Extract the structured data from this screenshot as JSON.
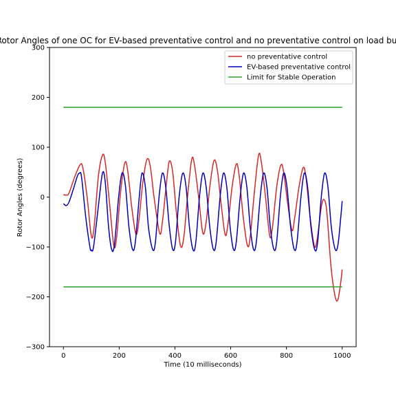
{
  "chart_data": {
    "type": "line",
    "title": "Rotor Angles of one OC for EV-based preventative control and no preventative control on load bu",
    "xlabel": "Time (10 milliseconds)",
    "ylabel": "Rotor Angles (degrees)",
    "xlim": [
      -50,
      1050
    ],
    "ylim": [
      -300,
      300
    ],
    "x_ticks": [
      0,
      200,
      400,
      600,
      800,
      1000
    ],
    "x_tick_labels": [
      "0",
      "200",
      "400",
      "600",
      "800",
      "1000"
    ],
    "y_ticks": [
      -300,
      -200,
      -100,
      0,
      100,
      200,
      300
    ],
    "y_tick_labels": [
      "−300",
      "−200",
      "−100",
      "0",
      "100",
      "200",
      "300"
    ],
    "grid": false,
    "legend_position": "top-right",
    "series": [
      {
        "name": "no preventative control",
        "color": "#d62728",
        "points": [
          [
            0,
            5
          ],
          [
            10,
            4
          ],
          [
            20,
            8
          ],
          [
            40,
            40
          ],
          [
            60,
            65
          ],
          [
            70,
            58
          ],
          [
            85,
            0
          ],
          [
            100,
            -78
          ],
          [
            110,
            -60
          ],
          [
            125,
            40
          ],
          [
            140,
            84
          ],
          [
            150,
            70
          ],
          [
            165,
            -10
          ],
          [
            180,
            -95
          ],
          [
            190,
            -85
          ],
          [
            205,
            10
          ],
          [
            220,
            68
          ],
          [
            230,
            55
          ],
          [
            245,
            -20
          ],
          [
            260,
            -74
          ],
          [
            270,
            -50
          ],
          [
            285,
            30
          ],
          [
            300,
            76
          ],
          [
            312,
            60
          ],
          [
            325,
            0
          ],
          [
            345,
            -72
          ],
          [
            355,
            -50
          ],
          [
            370,
            30
          ],
          [
            380,
            72
          ],
          [
            392,
            50
          ],
          [
            405,
            -30
          ],
          [
            420,
            -98
          ],
          [
            432,
            -80
          ],
          [
            445,
            0
          ],
          [
            460,
            75
          ],
          [
            470,
            65
          ],
          [
            485,
            0
          ],
          [
            500,
            -72
          ],
          [
            512,
            -50
          ],
          [
            525,
            20
          ],
          [
            540,
            73
          ],
          [
            552,
            55
          ],
          [
            565,
            -10
          ],
          [
            580,
            -75
          ],
          [
            590,
            -55
          ],
          [
            605,
            20
          ],
          [
            620,
            66
          ],
          [
            630,
            45
          ],
          [
            645,
            -40
          ],
          [
            660,
            -97
          ],
          [
            670,
            -80
          ],
          [
            685,
            10
          ],
          [
            700,
            84
          ],
          [
            710,
            70
          ],
          [
            725,
            0
          ],
          [
            740,
            -78
          ],
          [
            750,
            -60
          ],
          [
            765,
            20
          ],
          [
            780,
            64
          ],
          [
            790,
            50
          ],
          [
            805,
            -15
          ],
          [
            820,
            -67
          ],
          [
            830,
            -40
          ],
          [
            845,
            20
          ],
          [
            860,
            59
          ],
          [
            870,
            40
          ],
          [
            885,
            -40
          ],
          [
            900,
            -98
          ],
          [
            910,
            -85
          ],
          [
            925,
            -20
          ],
          [
            935,
            -5
          ],
          [
            945,
            -30
          ],
          [
            960,
            -140
          ],
          [
            975,
            -200
          ],
          [
            985,
            -205
          ],
          [
            995,
            -170
          ],
          [
            1000,
            -145
          ]
        ]
      },
      {
        "name": "EV-based preventative control",
        "color": "#0000b8",
        "points": [
          [
            0,
            -13
          ],
          [
            10,
            -17
          ],
          [
            20,
            -10
          ],
          [
            35,
            15
          ],
          [
            50,
            42
          ],
          [
            58,
            48
          ],
          [
            65,
            40
          ],
          [
            80,
            -40
          ],
          [
            95,
            -100
          ],
          [
            100,
            -106
          ],
          [
            108,
            -100
          ],
          [
            125,
            -20
          ],
          [
            140,
            48
          ],
          [
            150,
            30
          ],
          [
            162,
            -60
          ],
          [
            173,
            -105
          ],
          [
            183,
            -95
          ],
          [
            198,
            0
          ],
          [
            210,
            48
          ],
          [
            222,
            25
          ],
          [
            235,
            -60
          ],
          [
            248,
            -105
          ],
          [
            258,
            -90
          ],
          [
            272,
            0
          ],
          [
            282,
            48
          ],
          [
            294,
            20
          ],
          [
            305,
            -60
          ],
          [
            320,
            -105
          ],
          [
            330,
            -90
          ],
          [
            343,
            0
          ],
          [
            355,
            48
          ],
          [
            367,
            20
          ],
          [
            380,
            -60
          ],
          [
            392,
            -105
          ],
          [
            402,
            -90
          ],
          [
            415,
            0
          ],
          [
            428,
            48
          ],
          [
            440,
            20
          ],
          [
            452,
            -60
          ],
          [
            465,
            -106
          ],
          [
            475,
            -90
          ],
          [
            488,
            0
          ],
          [
            500,
            48
          ],
          [
            512,
            20
          ],
          [
            525,
            -60
          ],
          [
            538,
            -105
          ],
          [
            548,
            -90
          ],
          [
            562,
            0
          ],
          [
            574,
            48
          ],
          [
            586,
            20
          ],
          [
            598,
            -60
          ],
          [
            610,
            -105
          ],
          [
            620,
            -90
          ],
          [
            634,
            0
          ],
          [
            646,
            48
          ],
          [
            658,
            20
          ],
          [
            670,
            -60
          ],
          [
            682,
            -105
          ],
          [
            692,
            -90
          ],
          [
            706,
            0
          ],
          [
            718,
            48
          ],
          [
            730,
            20
          ],
          [
            742,
            -60
          ],
          [
            755,
            -105
          ],
          [
            765,
            -90
          ],
          [
            778,
            0
          ],
          [
            790,
            48
          ],
          [
            802,
            20
          ],
          [
            815,
            -60
          ],
          [
            828,
            -105
          ],
          [
            838,
            -90
          ],
          [
            852,
            0
          ],
          [
            864,
            48
          ],
          [
            876,
            20
          ],
          [
            888,
            -60
          ],
          [
            902,
            -106
          ],
          [
            912,
            -90
          ],
          [
            925,
            0
          ],
          [
            937,
            48
          ],
          [
            949,
            20
          ],
          [
            961,
            -60
          ],
          [
            975,
            -105
          ],
          [
            985,
            -95
          ],
          [
            995,
            -40
          ],
          [
            1000,
            -8
          ]
        ]
      },
      {
        "name": "Limit for Stable Operation",
        "color": "#2ca02c",
        "points": [
          [
            0,
            180
          ],
          [
            1000,
            180
          ]
        ]
      },
      {
        "name": "",
        "color": "#2ca02c",
        "points": [
          [
            0,
            -180
          ],
          [
            1000,
            -180
          ]
        ]
      }
    ]
  }
}
